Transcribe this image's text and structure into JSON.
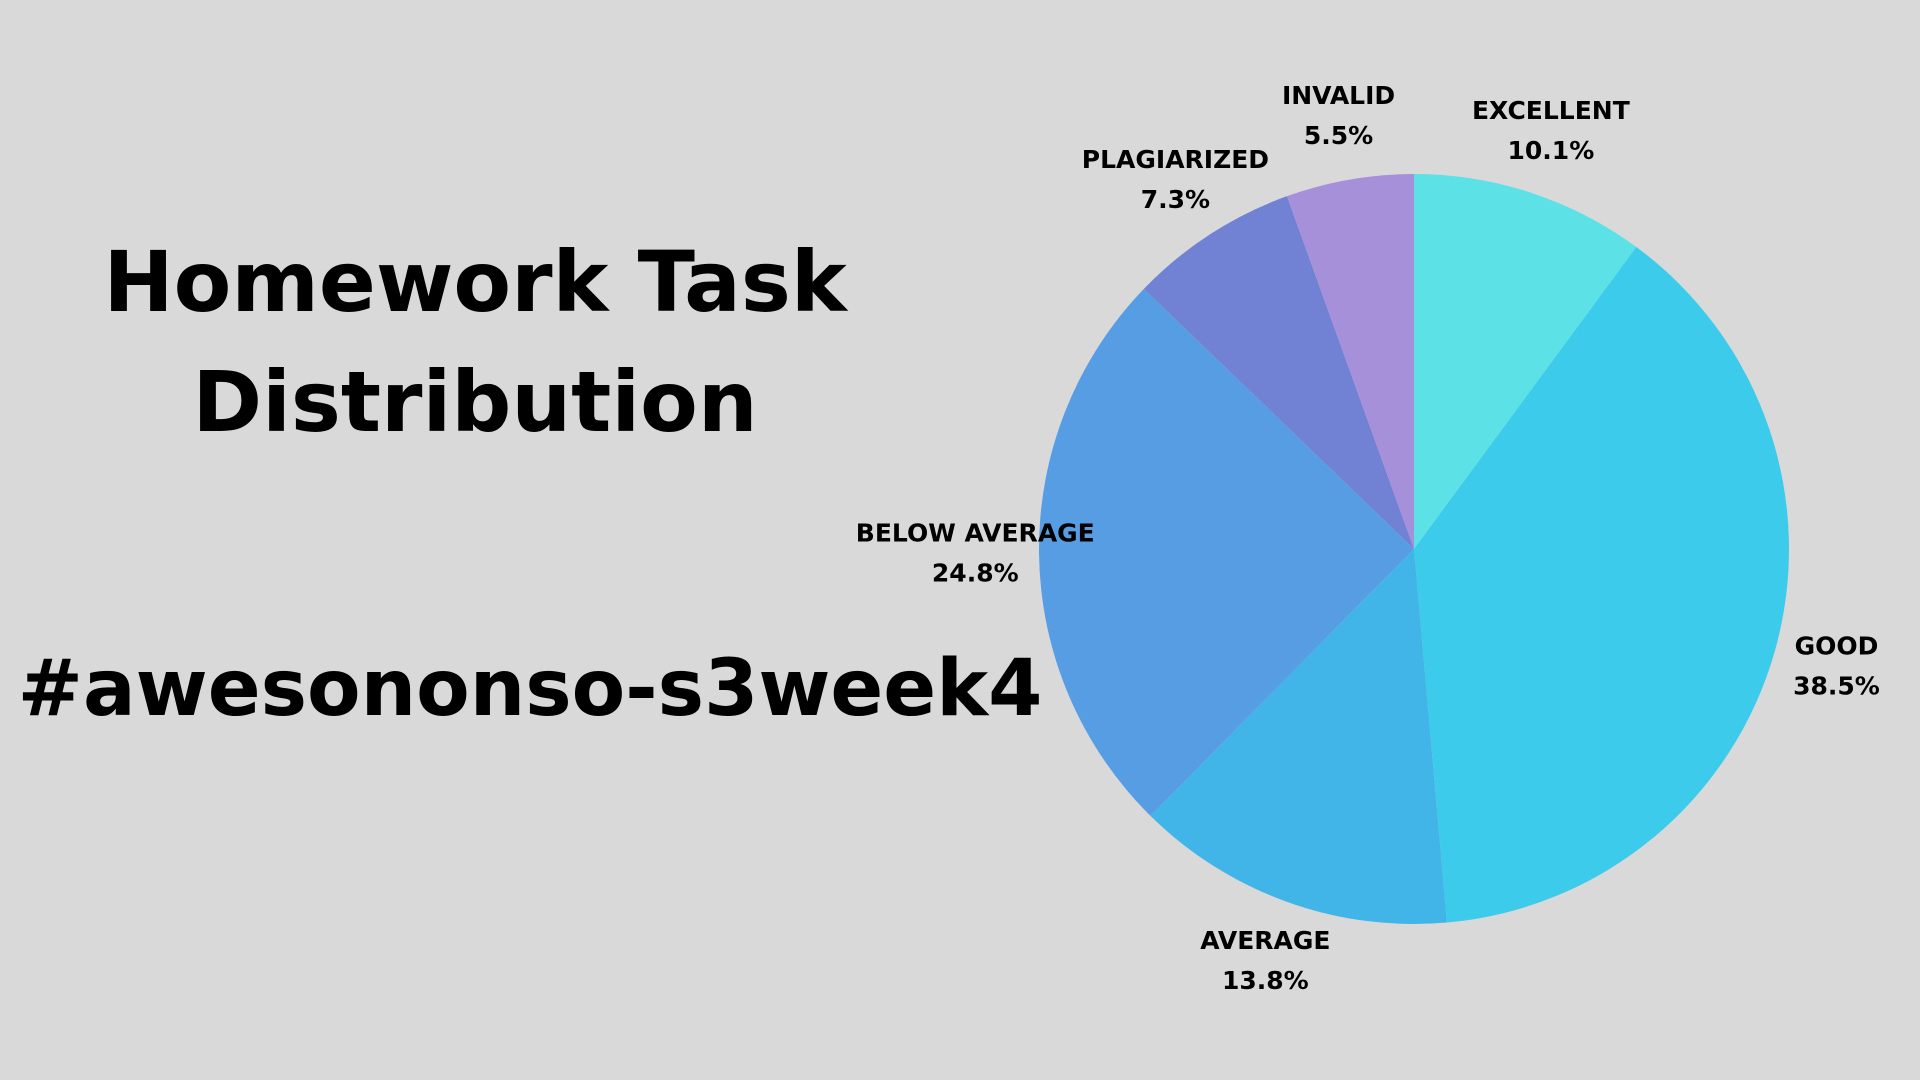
{
  "chart_data": {
    "type": "pie",
    "title": "Homework Task Distribution",
    "subtitle": "#awesononso-s3week4",
    "categories": [
      "EXCELLENT",
      "GOOD",
      "AVERAGE",
      "BELOW AVERAGE",
      "PLAGIARIZED",
      "INVALID"
    ],
    "values": [
      10.1,
      38.5,
      13.8,
      24.8,
      7.3,
      5.5
    ],
    "value_labels": [
      "10.1%",
      "38.5%",
      "13.8%",
      "24.8%",
      "7.3%",
      "5.5%"
    ],
    "colors": [
      "#5ce1e6",
      "#3dcbec",
      "#41b5e8",
      "#579de3",
      "#7181d3",
      "#a690d9"
    ]
  }
}
